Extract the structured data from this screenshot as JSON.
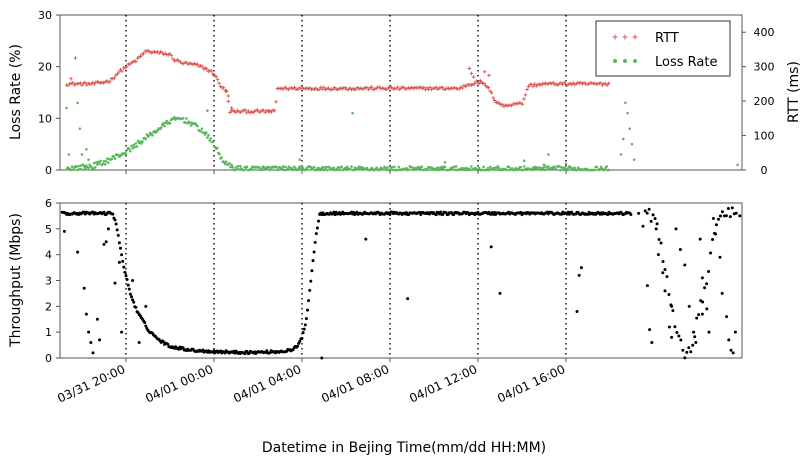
{
  "chart_data": [
    {
      "type": "scatter",
      "ylabel": "Loss Rate (%)",
      "y2label": "RTT (ms)",
      "ylim": [
        0,
        30
      ],
      "y2lim": [
        0,
        450
      ],
      "yticks": [
        0,
        10,
        20,
        30
      ],
      "y2ticks": [
        0,
        100,
        200,
        300,
        400
      ],
      "legend_position": "top-right",
      "grid": false,
      "series": [
        {
          "name": "RTT",
          "axis": "right",
          "marker": "+",
          "color": "#d9534f",
          "trend": [
            [
              -2.7,
              250
            ],
            [
              -2.2,
              250
            ],
            [
              -1.5,
              250
            ],
            [
              -1.0,
              255
            ],
            [
              -0.7,
              260
            ],
            [
              -0.4,
              280
            ],
            [
              0.0,
              300
            ],
            [
              0.5,
              320
            ],
            [
              0.9,
              345
            ],
            [
              1.5,
              340
            ],
            [
              2.0,
              335
            ],
            [
              2.2,
              320
            ],
            [
              2.6,
              310
            ],
            [
              3.2,
              305
            ],
            [
              3.6,
              295
            ],
            [
              4.0,
              280
            ],
            [
              4.3,
              245
            ],
            [
              4.6,
              225
            ],
            [
              4.7,
              170
            ],
            [
              6.8,
              170
            ],
            [
              6.85,
              237
            ],
            [
              15.2,
              237
            ],
            [
              15.4,
              245
            ],
            [
              16.0,
              255
            ],
            [
              16.4,
              245
            ],
            [
              16.8,
              200
            ],
            [
              17.2,
              185
            ],
            [
              17.8,
              195
            ],
            [
              18.0,
              190
            ],
            [
              18.3,
              245
            ],
            [
              19.0,
              250
            ],
            [
              22.0,
              250
            ]
          ],
          "extra": [
            [
              -2.3,
              325
            ],
            [
              -2.5,
              265
            ],
            [
              4.55,
              230
            ],
            [
              4.65,
              215
            ],
            [
              4.8,
              180
            ],
            [
              6.5,
              172
            ],
            [
              15.6,
              295
            ],
            [
              15.7,
              280
            ],
            [
              15.8,
              270
            ],
            [
              16.1,
              260
            ],
            [
              16.3,
              285
            ],
            [
              16.5,
              275
            ],
            [
              16.9,
              195
            ]
          ]
        },
        {
          "name": "Loss Rate",
          "axis": "left",
          "marker": "dot",
          "color": "#5cb85c",
          "trend": [
            [
              -2.7,
              0.3
            ],
            [
              -2.1,
              0.5
            ],
            [
              -1.5,
              0.8
            ],
            [
              -1.0,
              1.5
            ],
            [
              -0.5,
              2.5
            ],
            [
              0.0,
              3.5
            ],
            [
              0.5,
              5.0
            ],
            [
              1.0,
              6.5
            ],
            [
              1.5,
              8.0
            ],
            [
              2.0,
              9.5
            ],
            [
              2.5,
              10.0
            ],
            [
              3.0,
              9.0
            ],
            [
              3.5,
              7.5
            ],
            [
              4.0,
              5.0
            ],
            [
              4.3,
              2.5
            ],
            [
              4.6,
              1.0
            ],
            [
              5.0,
              0.3
            ],
            [
              8.0,
              0.2
            ],
            [
              22.0,
              0.2
            ]
          ],
          "extra": [
            [
              -2.7,
              12.0
            ],
            [
              -2.6,
              3.0
            ],
            [
              -2.2,
              13.0
            ],
            [
              -2.1,
              8.0
            ],
            [
              -2.0,
              3.0
            ],
            [
              -1.8,
              4.0
            ],
            [
              -1.7,
              2.0
            ],
            [
              3.7,
              11.5
            ],
            [
              7.9,
              2.0
            ],
            [
              10.3,
              11.0
            ],
            [
              14.5,
              1.5
            ],
            [
              18.1,
              1.8
            ],
            [
              19.0,
              1.0
            ],
            [
              19.2,
              3.0
            ],
            [
              22.7,
              13.0
            ],
            [
              22.8,
              11.0
            ],
            [
              22.9,
              8.0
            ],
            [
              22.6,
              6.0
            ],
            [
              23.0,
              5.0
            ],
            [
              22.5,
              3.0
            ],
            [
              23.1,
              2.0
            ],
            [
              20.0,
              1.2
            ],
            [
              27.8,
              1.0
            ]
          ]
        }
      ]
    },
    {
      "type": "scatter",
      "ylabel": "Throughput (Mbps)",
      "xlabel": "Datetime in Bejing Time(mm/dd HH:MM)",
      "ylim": [
        0,
        6
      ],
      "yticks": [
        0,
        1,
        2,
        3,
        4,
        5,
        6
      ],
      "grid": false,
      "x_unit": "hours since 03/31 20:00",
      "xlim": [
        -3,
        28
      ],
      "x_tick_values": [
        0,
        4,
        8,
        12,
        16,
        20
      ],
      "x_tick_labels": [
        "03/31 20:00",
        "04/01 00:00",
        "04/01 04:00",
        "04/01 08:00",
        "04/01 12:00",
        "04/01 16:00"
      ],
      "series": [
        {
          "marker": "dot",
          "color": "#000000",
          "trend": [
            [
              -2.9,
              5.6
            ],
            [
              -0.6,
              5.6
            ],
            [
              -0.4,
              5.0
            ],
            [
              -0.1,
              3.5
            ],
            [
              0.2,
              2.5
            ],
            [
              0.5,
              1.8
            ],
            [
              0.8,
              1.4
            ],
            [
              1.0,
              1.1
            ],
            [
              1.5,
              0.7
            ],
            [
              2.0,
              0.45
            ],
            [
              3.0,
              0.3
            ],
            [
              4.0,
              0.25
            ],
            [
              5.0,
              0.22
            ],
            [
              6.0,
              0.22
            ],
            [
              7.0,
              0.25
            ],
            [
              7.5,
              0.3
            ],
            [
              7.8,
              0.45
            ],
            [
              8.0,
              0.8
            ],
            [
              8.2,
              1.5
            ],
            [
              8.4,
              3.0
            ],
            [
              8.6,
              4.5
            ],
            [
              8.8,
              5.6
            ],
            [
              23.0,
              5.6
            ]
          ],
          "extra": [
            [
              -2.8,
              4.9
            ],
            [
              -2.2,
              4.1
            ],
            [
              -1.9,
              2.7
            ],
            [
              -1.8,
              1.7
            ],
            [
              -1.7,
              1.0
            ],
            [
              -1.6,
              0.6
            ],
            [
              -1.5,
              0.2
            ],
            [
              -1.3,
              1.5
            ],
            [
              -1.2,
              0.7
            ],
            [
              -1.0,
              4.4
            ],
            [
              -0.9,
              4.5
            ],
            [
              -0.8,
              5.0
            ],
            [
              -0.5,
              2.9
            ],
            [
              -0.3,
              3.7
            ],
            [
              -0.2,
              1.0
            ],
            [
              0.3,
              3.0
            ],
            [
              0.6,
              0.6
            ],
            [
              0.9,
              2.0
            ],
            [
              8.9,
              0.0
            ],
            [
              10.9,
              4.6
            ],
            [
              12.8,
              2.3
            ],
            [
              16.6,
              4.3
            ],
            [
              17.0,
              2.5
            ],
            [
              20.5,
              1.8
            ],
            [
              20.6,
              3.2
            ],
            [
              20.7,
              3.5
            ],
            [
              24.8,
              2.0
            ],
            [
              26.2,
              1.7
            ]
          ]
        }
      ]
    },
    {
      "type": "scatter",
      "series": [
        {
          "marker": "dot",
          "color": "#000000",
          "trend": [
            [
              23.6,
              5.6
            ],
            [
              24.0,
              5.4
            ],
            [
              24.3,
              4.5
            ],
            [
              24.6,
              3.0
            ],
            [
              24.9,
              1.6
            ],
            [
              25.1,
              0.8
            ],
            [
              25.3,
              0.3
            ],
            [
              25.5,
              0.2
            ],
            [
              25.7,
              0.5
            ],
            [
              26.0,
              1.5
            ],
            [
              26.3,
              2.7
            ],
            [
              26.6,
              4.1
            ],
            [
              26.9,
              5.3
            ],
            [
              27.2,
              5.6
            ],
            [
              27.8,
              5.6
            ]
          ],
          "extra": [
            [
              23.3,
              5.6
            ],
            [
              23.5,
              5.1
            ],
            [
              23.7,
              2.8
            ],
            [
              23.8,
              1.1
            ],
            [
              23.9,
              0.6
            ],
            [
              24.1,
              5.0
            ],
            [
              24.2,
              4.0
            ],
            [
              24.4,
              3.3
            ],
            [
              24.5,
              2.6
            ],
            [
              24.7,
              1.2
            ],
            [
              24.8,
              0.8
            ],
            [
              25.0,
              5.0
            ],
            [
              25.2,
              4.2
            ],
            [
              25.4,
              3.6
            ],
            [
              25.6,
              2.0
            ],
            [
              25.8,
              1.0
            ],
            [
              25.9,
              0.6
            ],
            [
              26.1,
              4.6
            ],
            [
              26.2,
              3.1
            ],
            [
              26.4,
              1.9
            ],
            [
              26.5,
              1.0
            ],
            [
              26.7,
              5.4
            ],
            [
              26.8,
              4.8
            ],
            [
              27.0,
              3.9
            ],
            [
              27.1,
              2.5
            ],
            [
              27.3,
              1.6
            ],
            [
              27.4,
              0.7
            ],
            [
              27.5,
              0.3
            ],
            [
              27.6,
              0.2
            ],
            [
              27.7,
              1.0
            ],
            [
              27.9,
              5.5
            ]
          ]
        }
      ]
    }
  ],
  "legend": {
    "rtt_label": "RTT",
    "loss_label": "Loss Rate"
  }
}
